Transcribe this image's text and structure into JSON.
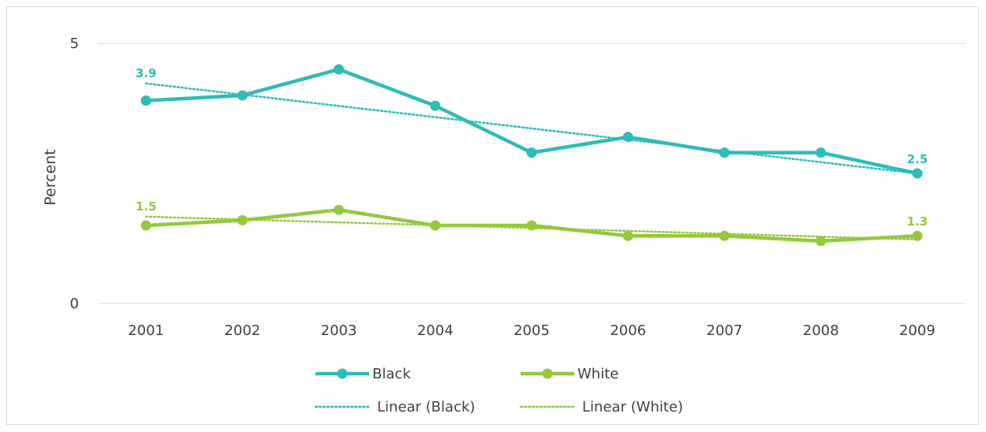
{
  "colors": {
    "black_series": "#2EBCB7",
    "white_series": "#95C83D",
    "gridline": "#d9d9d9",
    "text": "#404040"
  },
  "chart_data": {
    "type": "line",
    "ylabel": "Percent",
    "xlabel": "",
    "categories": [
      "2001",
      "2002",
      "2003",
      "2004",
      "2005",
      "2006",
      "2007",
      "2008",
      "2009"
    ],
    "yticks": [
      "0",
      "5"
    ],
    "ylim": [
      0,
      5
    ],
    "grid": true,
    "legend_position": "bottom",
    "series": [
      {
        "name": "Black",
        "values": [
          3.9,
          4.0,
          4.5,
          3.8,
          2.9,
          3.2,
          2.9,
          2.9,
          2.5
        ],
        "color": "#2EBCB7",
        "labels": {
          "first": "3.9",
          "last": "2.5"
        },
        "trendline": {
          "name": "Linear (Black)",
          "start": 4.23,
          "end": 2.5
        }
      },
      {
        "name": "White",
        "values": [
          1.5,
          1.6,
          1.8,
          1.5,
          1.5,
          1.3,
          1.3,
          1.2,
          1.3
        ],
        "color": "#95C83D",
        "labels": {
          "first": "1.5",
          "last": "1.3"
        },
        "trendline": {
          "name": "Linear (White)",
          "start": 1.67,
          "end": 1.23
        }
      }
    ]
  }
}
